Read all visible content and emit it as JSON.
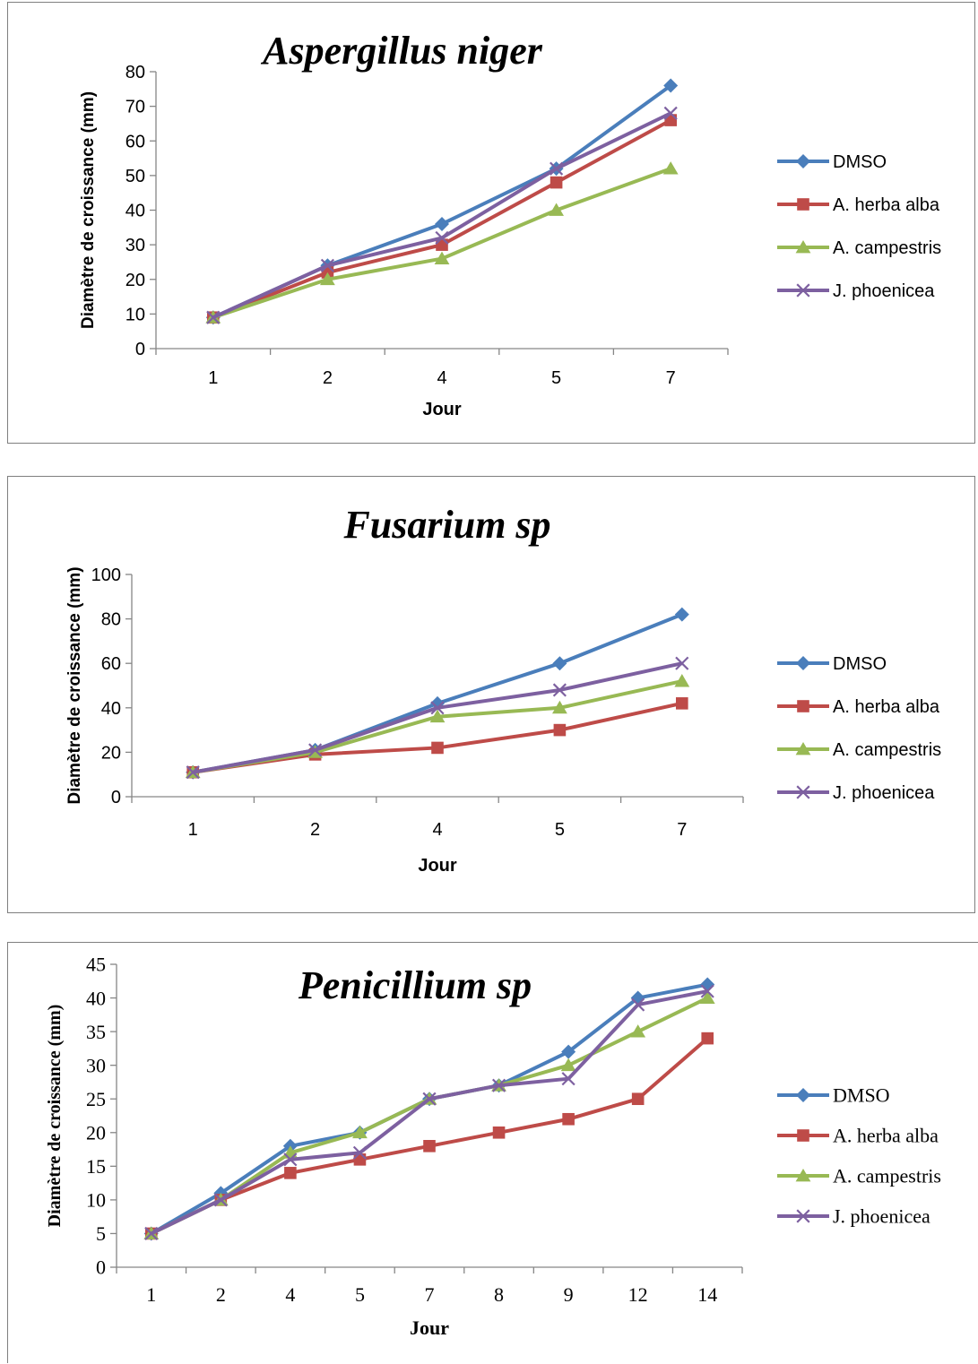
{
  "colors": {
    "DMSO": "#4a7ebb",
    "A. herba alba": "#be4b48",
    "A. campestris": "#98b954",
    "J. phoenicea": "#7d60a0",
    "axis": "#868686"
  },
  "chart_data": [
    {
      "type": "line",
      "title": "Aspergillus niger",
      "xlabel": "Jour",
      "ylabel": "Diamètre de croissance (mm)",
      "categories": [
        "1",
        "2",
        "4",
        "5",
        "7"
      ],
      "ylim": [
        0,
        80
      ],
      "yticks": [
        "0",
        "10",
        "20",
        "30",
        "40",
        "50",
        "60",
        "70",
        "80"
      ],
      "legend": "right",
      "series": [
        {
          "name": "DMSO",
          "marker": "diamond",
          "values": [
            9,
            24,
            36,
            52,
            76
          ]
        },
        {
          "name": "A. herba alba",
          "marker": "square",
          "values": [
            9,
            22,
            30,
            48,
            66
          ]
        },
        {
          "name": "A. campestris",
          "marker": "triangle",
          "values": [
            9,
            20,
            26,
            40,
            52
          ]
        },
        {
          "name": "J. phoenicea",
          "marker": "x",
          "values": [
            9,
            24,
            32,
            52,
            68
          ]
        }
      ]
    },
    {
      "type": "line",
      "title": "Fusarium sp",
      "xlabel": "Jour",
      "ylabel": "Diamètre de croissance (mm)",
      "categories": [
        "1",
        "2",
        "4",
        "5",
        "7"
      ],
      "ylim": [
        0,
        100
      ],
      "yticks": [
        "0",
        "20",
        "40",
        "60",
        "80",
        "100"
      ],
      "legend": "right",
      "series": [
        {
          "name": "DMSO",
          "marker": "diamond",
          "values": [
            11,
            21,
            42,
            60,
            82
          ]
        },
        {
          "name": "A. herba alba",
          "marker": "square",
          "values": [
            11,
            19,
            22,
            30,
            42
          ]
        },
        {
          "name": "A. campestris",
          "marker": "triangle",
          "values": [
            11,
            20,
            36,
            40,
            52
          ]
        },
        {
          "name": "J. phoenicea",
          "marker": "x",
          "values": [
            11,
            21,
            40,
            48,
            60
          ]
        }
      ]
    },
    {
      "type": "line",
      "title": "Penicillium sp",
      "xlabel": "Jour",
      "ylabel": "Diamètre de croissance (mm)",
      "categories": [
        "1",
        "2",
        "4",
        "5",
        "7",
        "8",
        "9",
        "12",
        "14"
      ],
      "ylim": [
        0,
        45
      ],
      "yticks": [
        "0",
        "5",
        "10",
        "15",
        "20",
        "25",
        "30",
        "35",
        "40",
        "45"
      ],
      "legend": "right",
      "series": [
        {
          "name": "DMSO",
          "marker": "diamond",
          "values": [
            5,
            11,
            18,
            20,
            25,
            27,
            32,
            40,
            42
          ]
        },
        {
          "name": "A. herba alba",
          "marker": "square",
          "values": [
            5,
            10,
            14,
            16,
            18,
            20,
            22,
            25,
            34
          ]
        },
        {
          "name": "A. campestris",
          "marker": "triangle",
          "values": [
            5,
            10,
            17,
            20,
            25,
            27,
            30,
            35,
            40
          ]
        },
        {
          "name": "J. phoenicea",
          "marker": "x",
          "values": [
            5,
            10,
            16,
            17,
            25,
            27,
            28,
            39,
            41
          ]
        }
      ]
    }
  ]
}
